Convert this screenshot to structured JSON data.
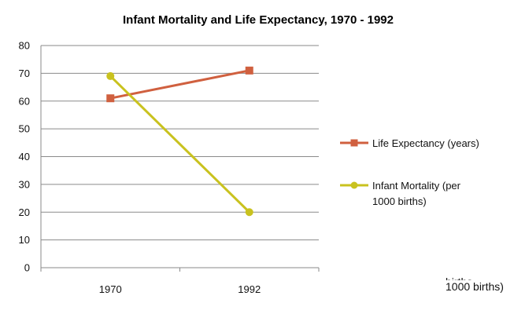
{
  "chart_data": {
    "type": "line",
    "title": "Infant Mortality and Life Expectancy, 1970  - 1992",
    "xlabel": "",
    "ylabel": "",
    "categories": [
      "1970",
      "1992"
    ],
    "ylim": [
      0,
      80
    ],
    "yticks": [
      0,
      10,
      20,
      30,
      40,
      50,
      60,
      70,
      80
    ],
    "grid": true,
    "legend_position": "right",
    "series": [
      {
        "name_lines": [
          "Life Expectancy (years)"
        ],
        "values": [
          61,
          71
        ],
        "color": "#d0603f",
        "marker": "square"
      },
      {
        "name_lines": [
          "Infant Mortality  (per",
          "1000 births)"
        ],
        "values": [
          69,
          20
        ],
        "color": "#c9c21f",
        "marker": "circle"
      }
    ]
  },
  "artifact": {
    "line1": "births",
    "line2": "1000 births)"
  }
}
